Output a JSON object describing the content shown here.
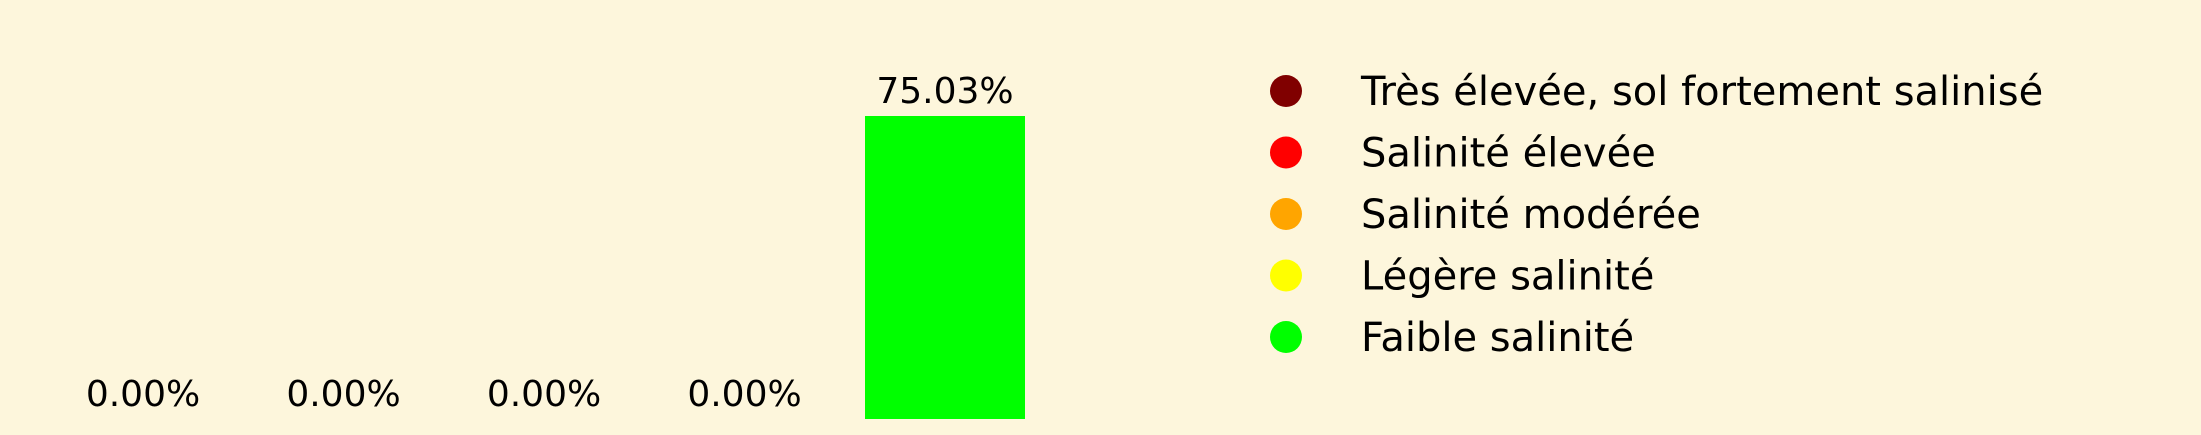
{
  "chart_data": {
    "type": "bar",
    "categories": [
      "Très élevée, sol fortement salinisé",
      "Salinité élevée",
      "Salinité modérée",
      "Légère salinité",
      "Faible salinité"
    ],
    "values": [
      0.0,
      0.0,
      0.0,
      0.0,
      75.03
    ],
    "value_labels": [
      "0.00%",
      "0.00%",
      "0.00%",
      "0.00%",
      "75.03%"
    ],
    "colors": [
      "#800000",
      "#ff0000",
      "#ffa500",
      "#ffff00",
      "#00ff00"
    ],
    "ylim": [
      0,
      75.03
    ],
    "legend": {
      "placement": "right",
      "entries": [
        "Très élevée, sol fortement salinisé",
        "Salinité élevée",
        "Salinité modérée",
        "Légère salinité",
        "Faible salinité"
      ]
    },
    "grid": false,
    "axes_visible": false
  },
  "colors": {
    "background": "#fdf6dc"
  }
}
